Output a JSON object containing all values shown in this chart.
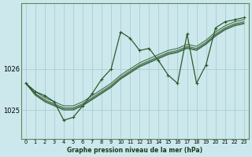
{
  "title": "Graphe pression niveau de la mer (hPa)",
  "bg_color": "#cce8ec",
  "grid_color": "#aacdd4",
  "line_color": "#2d5a2d",
  "x_ticks": [
    0,
    1,
    2,
    3,
    4,
    5,
    6,
    7,
    8,
    9,
    10,
    11,
    12,
    13,
    14,
    15,
    16,
    17,
    18,
    19,
    20,
    21,
    22,
    23
  ],
  "ylim": [
    1024.3,
    1027.6
  ],
  "yticks": [
    1025,
    1026
  ],
  "main_line": [
    1025.65,
    1025.45,
    1025.35,
    1025.2,
    1024.75,
    1024.82,
    1025.1,
    1025.4,
    1025.75,
    1026.0,
    1026.9,
    1026.75,
    1026.45,
    1026.5,
    1026.2,
    1025.85,
    1025.65,
    1026.85,
    1025.65,
    1026.1,
    1027.0,
    1027.15,
    1027.2,
    1027.25
  ],
  "smooth_lines": [
    [
      1025.65,
      1025.45,
      1025.3,
      1025.2,
      1025.1,
      1025.1,
      1025.2,
      1025.35,
      1025.5,
      1025.65,
      1025.85,
      1026.0,
      1026.15,
      1026.25,
      1026.35,
      1026.45,
      1026.5,
      1026.6,
      1026.55,
      1026.7,
      1026.9,
      1027.05,
      1027.15,
      1027.2
    ],
    [
      1025.65,
      1025.4,
      1025.25,
      1025.15,
      1025.05,
      1025.05,
      1025.15,
      1025.3,
      1025.45,
      1025.6,
      1025.8,
      1025.95,
      1026.1,
      1026.2,
      1026.3,
      1026.4,
      1026.45,
      1026.55,
      1026.5,
      1026.65,
      1026.85,
      1027.0,
      1027.1,
      1027.15
    ],
    [
      1025.65,
      1025.38,
      1025.22,
      1025.12,
      1025.02,
      1025.02,
      1025.12,
      1025.27,
      1025.42,
      1025.57,
      1025.77,
      1025.92,
      1026.07,
      1026.17,
      1026.27,
      1026.37,
      1026.42,
      1026.52,
      1026.47,
      1026.62,
      1026.82,
      1026.97,
      1027.07,
      1027.12
    ],
    [
      1025.65,
      1025.36,
      1025.2,
      1025.1,
      1025.0,
      1025.0,
      1025.1,
      1025.25,
      1025.4,
      1025.55,
      1025.75,
      1025.9,
      1026.05,
      1026.15,
      1026.25,
      1026.35,
      1026.4,
      1026.5,
      1026.45,
      1026.6,
      1026.8,
      1026.95,
      1027.05,
      1027.1
    ]
  ]
}
